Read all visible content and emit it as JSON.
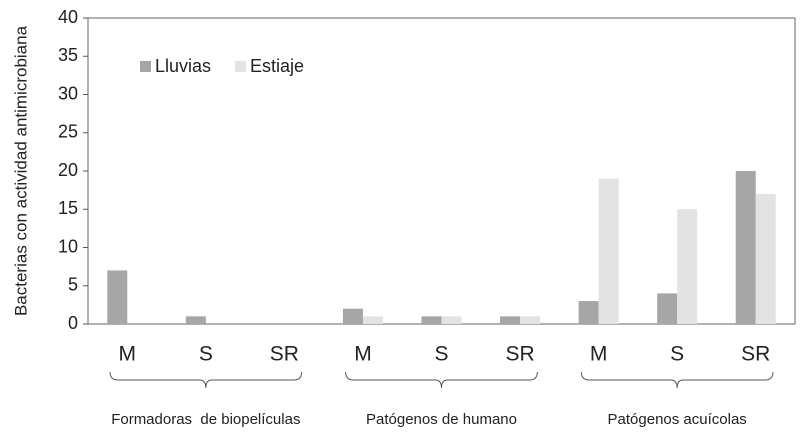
{
  "chart_data": {
    "type": "bar",
    "y_label": "Bacterias con actividad antimicrobiana",
    "categories": [
      "M",
      "S",
      "SR",
      "M",
      "S",
      "SR",
      "M",
      "S",
      "SR"
    ],
    "groups": [
      "Formadoras  de biopelículas",
      "Patógenos de humano",
      "Patógenos acuícolas"
    ],
    "series": [
      {
        "name": "Lluvias",
        "color": "#a6a6a6",
        "values": [
          7,
          1,
          0,
          2,
          1,
          1,
          3,
          4,
          20
        ]
      },
      {
        "name": "Estiaje",
        "color": "#e3e3e3",
        "values": [
          0,
          0,
          0,
          1,
          1,
          1,
          19,
          15,
          17
        ]
      }
    ],
    "ylim": [
      0,
      40
    ],
    "yticks": [
      0,
      5,
      10,
      15,
      20,
      25,
      30,
      35,
      40
    ],
    "grid": false,
    "legend": "top-left"
  }
}
